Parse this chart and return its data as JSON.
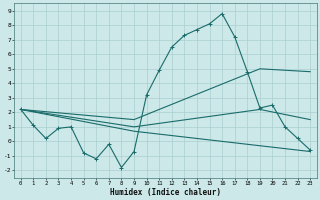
{
  "xlabel": "Humidex (Indice chaleur)",
  "background_color": "#cce8e8",
  "line_color": "#1a6b6b",
  "grid_color": "#aacfcf",
  "xlim": [
    -0.5,
    23.5
  ],
  "ylim": [
    -2.5,
    9.5
  ],
  "xticks": [
    0,
    1,
    2,
    3,
    4,
    5,
    6,
    7,
    8,
    9,
    10,
    11,
    12,
    13,
    14,
    15,
    16,
    17,
    18,
    19,
    20,
    21,
    22,
    23
  ],
  "yticks": [
    -2,
    -1,
    0,
    1,
    2,
    3,
    4,
    5,
    6,
    7,
    8,
    9
  ],
  "line1_x": [
    0,
    1,
    2,
    3,
    4,
    5,
    6,
    7,
    8,
    9,
    10,
    11,
    12,
    13,
    14,
    15,
    16,
    17,
    18,
    19,
    20,
    21,
    22,
    23
  ],
  "line1_y": [
    2.2,
    1.1,
    0.2,
    0.9,
    1.0,
    -0.8,
    -1.2,
    -0.2,
    -1.8,
    -0.7,
    3.2,
    4.9,
    6.5,
    7.3,
    7.7,
    8.1,
    8.8,
    7.2,
    4.8,
    2.3,
    2.5,
    1.0,
    0.2,
    -0.6
  ],
  "line2_x": [
    0,
    9,
    19,
    23
  ],
  "line2_y": [
    2.2,
    1.5,
    5.0,
    4.8
  ],
  "line3_x": [
    0,
    9,
    19,
    23
  ],
  "line3_y": [
    2.2,
    1.0,
    2.2,
    1.5
  ],
  "line4_x": [
    0,
    9,
    19,
    23
  ],
  "line4_y": [
    2.2,
    0.7,
    -0.3,
    -0.7
  ]
}
